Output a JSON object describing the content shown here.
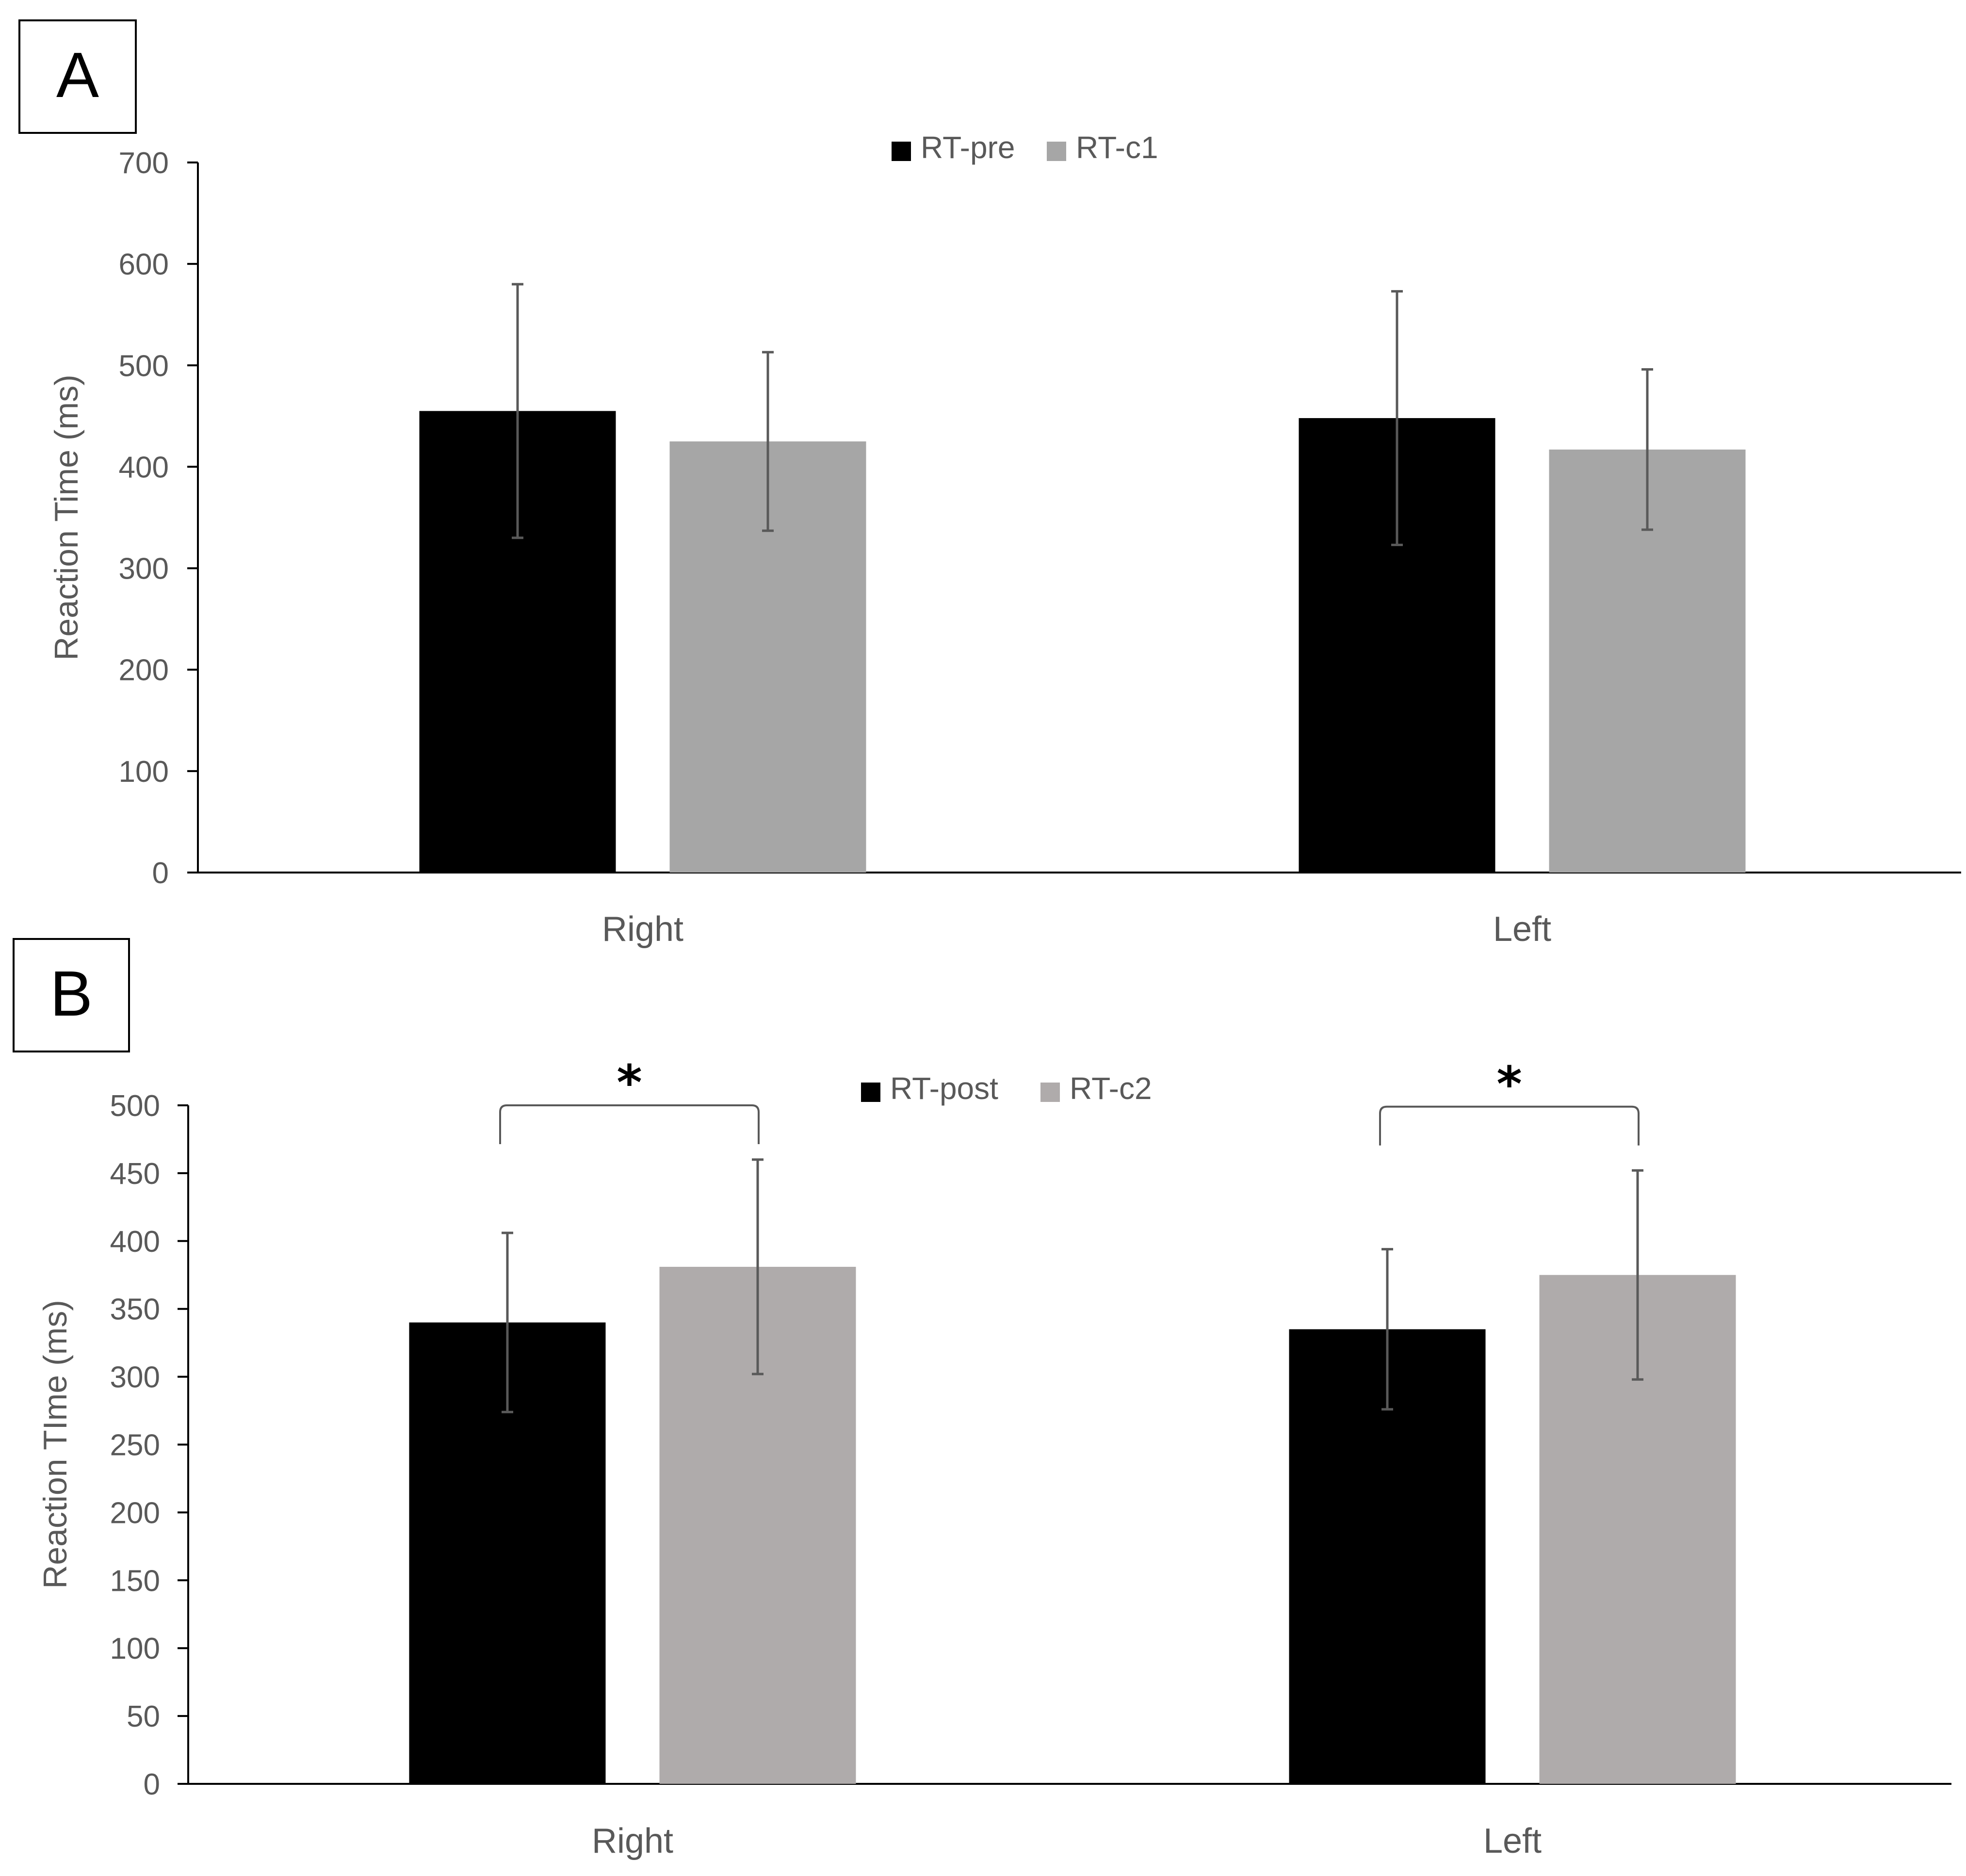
{
  "colors": {
    "series_dark": "#000000",
    "series_a_light": "#a6a6a6",
    "series_b_light": "#afabab",
    "axis": "#000000",
    "tick_text": "#595959",
    "error_bar": "#595959",
    "bracket": "#595959"
  },
  "chart_data": [
    {
      "panel_label": "A",
      "type": "bar",
      "title": "",
      "xlabel": "",
      "ylabel": "Reaction Time (ms)",
      "ylim": [
        0,
        700
      ],
      "yticks": [
        0,
        100,
        200,
        300,
        400,
        500,
        600,
        700
      ],
      "categories": [
        "Right",
        "Left"
      ],
      "legend_position": "top-center",
      "grid": false,
      "series": [
        {
          "name": "RT-pre",
          "color": "#000000",
          "values": [
            455,
            448
          ],
          "errors": [
            125,
            125
          ]
        },
        {
          "name": "RT-c1",
          "color": "#a6a6a6",
          "values": [
            425,
            417
          ],
          "errors": [
            88,
            79
          ]
        }
      ],
      "significance": []
    },
    {
      "panel_label": "B",
      "type": "bar",
      "title": "",
      "xlabel": "",
      "ylabel": "Reaction TIme (ms)",
      "ylim": [
        0,
        500
      ],
      "yticks": [
        0,
        50,
        100,
        150,
        200,
        250,
        300,
        350,
        400,
        450,
        500
      ],
      "categories": [
        "Right",
        "Left"
      ],
      "legend_position": "top-center",
      "grid": false,
      "series": [
        {
          "name": "RT-post",
          "color": "#000000",
          "values": [
            340,
            335
          ],
          "errors": [
            66,
            59
          ]
        },
        {
          "name": "RT-c2",
          "color": "#afabab",
          "values": [
            381,
            375
          ],
          "errors": [
            79,
            77
          ]
        }
      ],
      "significance": [
        {
          "category": "Right",
          "label": "*",
          "level": 500
        },
        {
          "category": "Left",
          "label": "*",
          "level": 499
        }
      ]
    }
  ]
}
